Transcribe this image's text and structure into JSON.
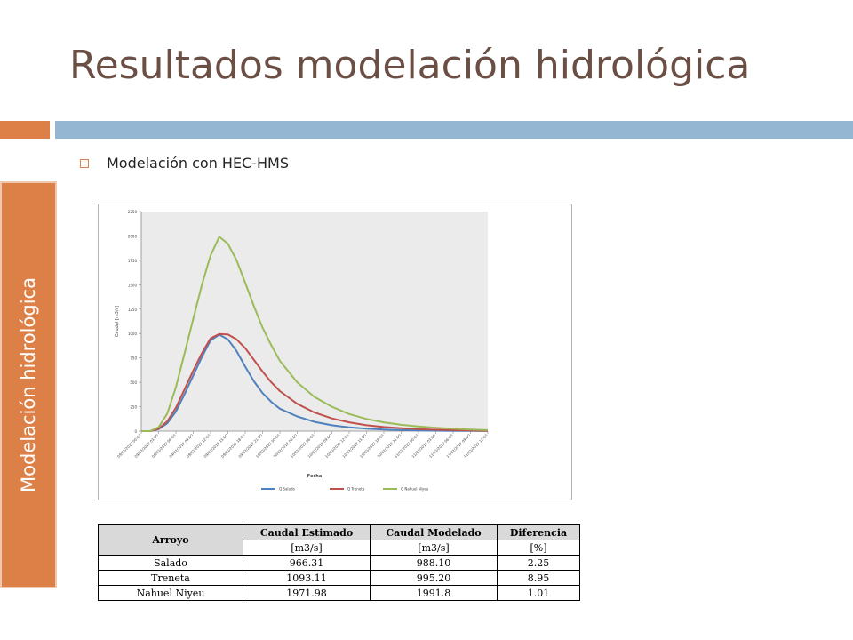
{
  "slide": {
    "title": "Resultados modelación hidrológica",
    "side_label": "Modelación hidrológica",
    "bullet": "Modelación con HEC-HMS"
  },
  "colors": {
    "accent_orange": "#dd8047",
    "accent_blue": "#94b6d2",
    "title": "#6b4f45"
  },
  "chart_data": {
    "type": "line",
    "xlabel": "Fecha",
    "ylabel": "Caudal [m3/s]",
    "ylim": [
      0,
      2250
    ],
    "yticks": [
      0,
      250,
      500,
      750,
      1000,
      1250,
      1500,
      1750,
      2000,
      2250
    ],
    "ytick_labels": [
      "0",
      "250",
      "500",
      "750",
      "1000",
      "1250",
      "1500",
      "1750",
      "2000",
      "2250"
    ],
    "xtick_labels": [
      "09/02/2012 00:00",
      "09/02/2012 03:00",
      "09/02/2012 06:00",
      "09/02/2012 09:00",
      "09/02/2012 12:00",
      "09/02/2012 15:00",
      "09/02/2012 18:00",
      "09/02/2012 21:00",
      "10/02/2012 00:00",
      "10/02/2012 03:00",
      "10/02/2012 06:00",
      "10/02/2012 09:00",
      "10/02/2012 12:00",
      "10/02/2012 15:00",
      "10/02/2012 18:00",
      "10/02/2012 21:00",
      "11/02/2012 00:00",
      "11/02/2012 03:00",
      "11/02/2012 06:00",
      "11/02/2012 09:00",
      "11/02/2012 12:00"
    ],
    "grid": false,
    "legend_position": "bottom",
    "x": [
      0,
      0.5,
      1,
      1.5,
      2,
      2.5,
      3,
      3.5,
      4,
      4.5,
      5,
      5.5,
      6,
      6.5,
      7,
      7.5,
      8,
      9,
      10,
      11,
      12,
      13,
      14,
      15,
      16,
      17,
      18,
      19,
      20
    ],
    "series": [
      {
        "name": "Q Salado",
        "color": "#4f81bd",
        "values": [
          0,
          0,
          20,
          80,
          200,
          380,
          570,
          760,
          930,
          988,
          940,
          820,
          660,
          510,
          390,
          300,
          230,
          150,
          95,
          60,
          38,
          25,
          16,
          10,
          7,
          5,
          3,
          2,
          1
        ]
      },
      {
        "name": "Q Treneta",
        "color": "#c0504d",
        "values": [
          0,
          0,
          25,
          100,
          240,
          430,
          620,
          800,
          950,
          995,
          990,
          940,
          850,
          730,
          610,
          500,
          410,
          280,
          190,
          130,
          90,
          60,
          42,
          30,
          20,
          14,
          10,
          6,
          4
        ]
      },
      {
        "name": "Q Nahuel Niyeu",
        "color": "#9bbb59",
        "values": [
          0,
          0,
          40,
          180,
          450,
          800,
          1150,
          1500,
          1800,
          1991,
          1920,
          1750,
          1520,
          1280,
          1060,
          880,
          720,
          500,
          350,
          250,
          175,
          125,
          90,
          65,
          48,
          35,
          25,
          16,
          10
        ]
      }
    ]
  },
  "table": {
    "headers": [
      {
        "top": "Arroyo",
        "unit": ""
      },
      {
        "top": "Caudal Estimado",
        "unit": "[m3/s]"
      },
      {
        "top": "Caudal Modelado",
        "unit": "[m3/s]"
      },
      {
        "top": "Diferencia",
        "unit": "[%]"
      }
    ],
    "rows": [
      [
        "Salado",
        "966.31",
        "988.10",
        "2.25"
      ],
      [
        "Treneta",
        "1093.11",
        "995.20",
        "8.95"
      ],
      [
        "Nahuel Niyeu",
        "1971.98",
        "1991.8",
        "1.01"
      ]
    ]
  }
}
